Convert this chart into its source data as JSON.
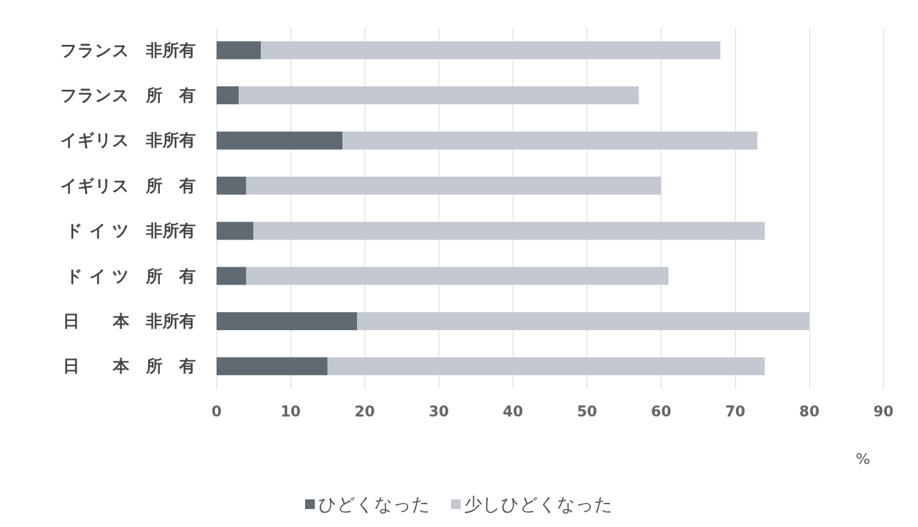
{
  "chart_data": {
    "type": "bar",
    "orientation": "horizontal",
    "stacked": true,
    "xlabel": "%",
    "categories": [
      "フランス　非所有",
      "フランス　所　有",
      "イギリス　非所有",
      "イギリス　所　有",
      "ド イ ツ　非所有",
      "ド イ ツ　所　有",
      "日　　本　非所有",
      "日　　本　所　有"
    ],
    "series": [
      {
        "name": "ひどくなった",
        "color": "#5f6a73",
        "values": [
          6,
          3,
          17,
          4,
          5,
          4,
          19,
          15
        ]
      },
      {
        "name": "少しひどくなった",
        "color": "#c4c9d1",
        "values": [
          62,
          54,
          56,
          56,
          69,
          57,
          61,
          59
        ]
      }
    ],
    "xlim": [
      0,
      90
    ],
    "xticks": [
      0,
      10,
      20,
      30,
      40,
      50,
      60,
      70,
      80,
      90
    ],
    "grid": "x",
    "legend": "bottom"
  }
}
